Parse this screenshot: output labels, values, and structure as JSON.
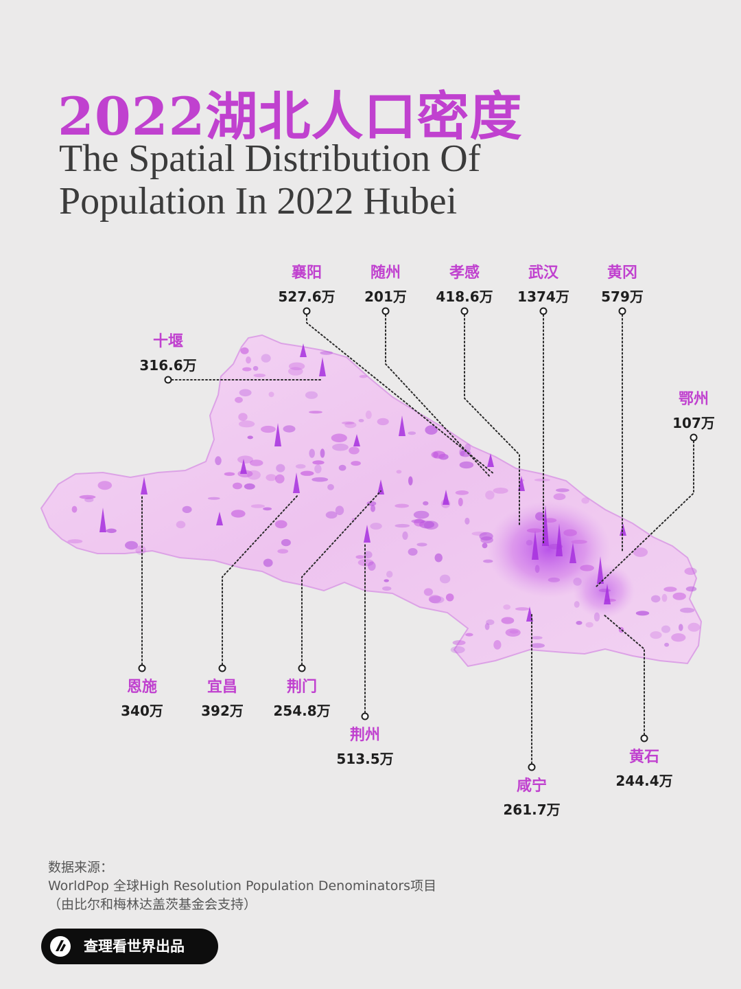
{
  "title": {
    "chinese": "2022湖北人口密度",
    "english_line1": "The Spatial Distribution Of",
    "english_line2": "Population In 2022 Hubei"
  },
  "colors": {
    "accent": "#c041cf",
    "map_fill": "#efc8ef",
    "map_edge": "#d894e2",
    "peak": "#a92fe0",
    "background": "#ebeaea"
  },
  "cities": [
    {
      "id": "xiangyang",
      "name": "襄阳",
      "population": "527.6万"
    },
    {
      "id": "suizhou",
      "name": "随州",
      "population": "201万"
    },
    {
      "id": "xiaogan",
      "name": "孝感",
      "population": "418.6万"
    },
    {
      "id": "wuhan",
      "name": "武汉",
      "population": "1374万"
    },
    {
      "id": "huanggang",
      "name": "黄冈",
      "population": "579万"
    },
    {
      "id": "shiyan",
      "name": "十堰",
      "population": "316.6万"
    },
    {
      "id": "ezhou",
      "name": "鄂州",
      "population": "107万"
    },
    {
      "id": "enshi",
      "name": "恩施",
      "population": "340万"
    },
    {
      "id": "yichang",
      "name": "宜昌",
      "population": "392万"
    },
    {
      "id": "jingmen",
      "name": "荆门",
      "population": "254.8万"
    },
    {
      "id": "jingzhou",
      "name": "荆州",
      "population": "513.5万"
    },
    {
      "id": "xianning",
      "name": "咸宁",
      "population": "261.7万"
    },
    {
      "id": "huangshi",
      "name": "黄石",
      "population": "244.4万"
    }
  ],
  "source": {
    "heading": "数据来源：",
    "line1": "WorldPop 全球High Resolution Population Denominators项目",
    "line2": "（由比尔和梅林达盖茨基金会支持）"
  },
  "brand": {
    "text": "查理看世界出品",
    "icon": "brand-logo-icon"
  }
}
